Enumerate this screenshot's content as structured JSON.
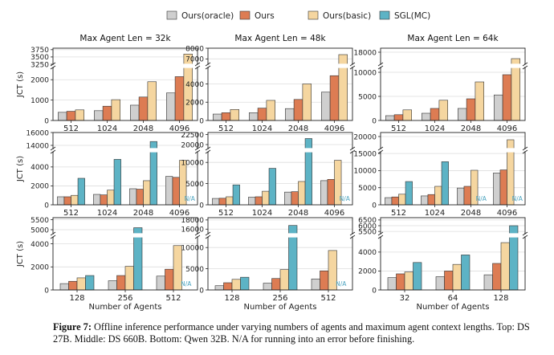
{
  "legend": [
    {
      "name": "Ours(oracle)",
      "color": "#cfcfcf"
    },
    {
      "name": "Ours",
      "color": "#dd7c53"
    },
    {
      "name": "Ours(basic)",
      "color": "#f5d6a0"
    },
    {
      "name": "SGL(MC)",
      "color": "#5db3c5"
    }
  ],
  "caption": {
    "label": "Figure 7:",
    "text": " Offline inference performance under varying numbers of agents and maximum agent context lengths. Top: DS 27B. Middle: DS 660B. Bottom: Qwen 32B. N/A for running into an error before finishing."
  },
  "chart_data": [
    {
      "type": "bar",
      "title": "Max Agent Len = 32k",
      "ylabel": "JCT (s)",
      "xlabel": "",
      "categories": [
        "512",
        "1024",
        "2048",
        "4096"
      ],
      "lower": {
        "range": [
          0,
          2600
        ],
        "ticks": [
          0,
          1000,
          2000
        ]
      },
      "upper": {
        "range": [
          3250,
          3800
        ],
        "ticks": [
          3250,
          3500,
          3750
        ]
      },
      "series": [
        {
          "name": "Ours(oracle)",
          "values": [
            400,
            480,
            750,
            1350
          ]
        },
        {
          "name": "Ours",
          "values": [
            450,
            700,
            1150,
            2150
          ]
        },
        {
          "name": "Ours(basic)",
          "values": [
            520,
            1020,
            1900,
            3600
          ]
        }
      ],
      "na": []
    },
    {
      "type": "bar",
      "title": "Max Agent Len = 48k",
      "ylabel": "",
      "xlabel": "",
      "categories": [
        "512",
        "1024",
        "2048",
        "4096"
      ],
      "lower": {
        "range": [
          0,
          5800
        ],
        "ticks": [
          0,
          2000,
          4000
        ]
      },
      "upper": {
        "range": [
          6500,
          8000
        ],
        "ticks": [
          7000,
          8000
        ]
      },
      "series": [
        {
          "name": "Ours(oracle)",
          "values": [
            700,
            850,
            1300,
            3100
          ]
        },
        {
          "name": "Ours",
          "values": [
            850,
            1350,
            2300,
            4900
          ]
        },
        {
          "name": "Ours(basic)",
          "values": [
            1200,
            2200,
            4000,
            7400
          ]
        }
      ],
      "na": []
    },
    {
      "type": "bar",
      "title": "Max Agent Len = 64k",
      "ylabel": "",
      "xlabel": "",
      "categories": [
        "512",
        "1024",
        "2048",
        "4096"
      ],
      "lower": {
        "range": [
          0,
          11000
        ],
        "ticks": [
          0,
          5000,
          10000
        ]
      },
      "upper": {
        "range": [
          16500,
          18500
        ],
        "ticks": [
          18000
        ]
      },
      "series": [
        {
          "name": "Ours(oracle)",
          "values": [
            1000,
            1500,
            2500,
            5300
          ]
        },
        {
          "name": "Ours",
          "values": [
            1200,
            2500,
            4500,
            9500
          ]
        },
        {
          "name": "Ours(basic)",
          "values": [
            2200,
            4200,
            8000,
            17200
          ]
        }
      ],
      "na": []
    },
    {
      "type": "bar",
      "title": "",
      "ylabel": "JCT (s)",
      "xlabel": "",
      "categories": [
        "512",
        "1024",
        "2048",
        "4096"
      ],
      "lower": {
        "range": [
          0,
          5600
        ],
        "ticks": [
          0,
          2000,
          4000
        ]
      },
      "upper": {
        "range": [
          13500,
          16000
        ],
        "ticks": [
          14000,
          16000
        ]
      },
      "series": [
        {
          "name": "Ours(oracle)",
          "values": [
            850,
            1100,
            1700,
            3000
          ]
        },
        {
          "name": "Ours",
          "values": [
            850,
            1050,
            1650,
            2900
          ]
        },
        {
          "name": "Ours(basic)",
          "values": [
            1000,
            1550,
            2550,
            4700
          ]
        },
        {
          "name": "SGL(MC)",
          "values": [
            2800,
            4800,
            14600,
            null
          ]
        }
      ],
      "na": [
        {
          "series": "SGL(MC)",
          "category": "4096",
          "text": "N/A"
        }
      ]
    },
    {
      "type": "bar",
      "title": "",
      "ylabel": "",
      "xlabel": "",
      "categories": [
        "512",
        "1024",
        "2048",
        "4096"
      ],
      "lower": {
        "range": [
          0,
          12500
        ],
        "ticks": [
          0,
          5000,
          10000
        ]
      },
      "upper": {
        "range": [
          19000,
          23000
        ],
        "ticks": [
          20000,
          22500
        ]
      },
      "series": [
        {
          "name": "Ours(oracle)",
          "values": [
            1500,
            1800,
            3000,
            5700
          ]
        },
        {
          "name": "Ours",
          "values": [
            1550,
            1900,
            3100,
            6000
          ]
        },
        {
          "name": "Ours(basic)",
          "values": [
            1900,
            3200,
            5500,
            10500
          ]
        },
        {
          "name": "SGL(MC)",
          "values": [
            4700,
            8600,
            21500,
            null
          ]
        }
      ],
      "na": [
        {
          "series": "SGL(MC)",
          "category": "4096",
          "text": "N/A"
        }
      ]
    },
    {
      "type": "bar",
      "title": "",
      "ylabel": "",
      "xlabel": "",
      "categories": [
        "512",
        "1024",
        "2048",
        "4096"
      ],
      "lower": {
        "range": [
          0,
          15500
        ],
        "ticks": [
          0,
          5000,
          10000,
          15000
        ]
      },
      "upper": {
        "range": [
          17000,
          21000
        ],
        "ticks": [
          20000
        ]
      },
      "series": [
        {
          "name": "Ours(oracle)",
          "values": [
            2100,
            2600,
            4900,
            9300
          ]
        },
        {
          "name": "Ours",
          "values": [
            2300,
            3000,
            5400,
            10200
          ]
        },
        {
          "name": "Ours(basic)",
          "values": [
            3100,
            5400,
            10100,
            19200
          ]
        },
        {
          "name": "SGL(MC)",
          "values": [
            6800,
            12600,
            null,
            null
          ]
        }
      ],
      "na": [
        {
          "series": "SGL(MC)",
          "category": "2048",
          "text": "N/A"
        },
        {
          "series": "SGL(MC)",
          "category": "4096",
          "text": "N/A"
        }
      ]
    },
    {
      "type": "bar",
      "title": "",
      "ylabel": "JCT (s)",
      "xlabel": "Number of Agents",
      "categories": [
        "128",
        "256",
        "512"
      ],
      "lower": {
        "range": [
          0,
          4600
        ],
        "ticks": [
          0,
          2000,
          4000
        ]
      },
      "upper": {
        "range": [
          4800,
          5600
        ],
        "ticks": [
          5000,
          5500
        ]
      },
      "series": [
        {
          "name": "Ours(oracle)",
          "values": [
            550,
            800,
            1200
          ]
        },
        {
          "name": "Ours",
          "values": [
            750,
            1250,
            1800
          ]
        },
        {
          "name": "Ours(basic)",
          "values": [
            1050,
            2050,
            3850
          ]
        },
        {
          "name": "SGL(MC)",
          "values": [
            1250,
            5100,
            null
          ]
        }
      ],
      "na": [
        {
          "series": "SGL(MC)",
          "category": "512",
          "text": "N/A"
        }
      ]
    },
    {
      "type": "bar",
      "title": "",
      "ylabel": "",
      "xlabel": "Number of Agents",
      "categories": [
        "128",
        "256",
        "512"
      ],
      "lower": {
        "range": [
          0,
          12500
        ],
        "ticks": [
          0,
          5000,
          10000
        ]
      },
      "upper": {
        "range": [
          15000,
          18500
        ],
        "ticks": [
          16000,
          18000
        ]
      },
      "series": [
        {
          "name": "Ours(oracle)",
          "values": [
            1000,
            1600,
            2600
          ]
        },
        {
          "name": "Ours",
          "values": [
            1700,
            2700,
            4500
          ]
        },
        {
          "name": "Ours(basic)",
          "values": [
            2500,
            4800,
            9300
          ]
        },
        {
          "name": "SGL(MC)",
          "values": [
            3000,
            16800,
            null
          ]
        }
      ],
      "na": [
        {
          "series": "SGL(MC)",
          "category": "512",
          "text": "N/A"
        }
      ]
    },
    {
      "type": "bar",
      "title": "",
      "ylabel": "",
      "xlabel": "Number of Agents",
      "categories": [
        "32",
        "64",
        "128"
      ],
      "lower": {
        "range": [
          0,
          5600
        ],
        "ticks": [
          0,
          2000,
          4000
        ]
      },
      "upper": {
        "range": [
          5300,
          6700
        ],
        "ticks": [
          5500,
          6000,
          6500
        ]
      },
      "series": [
        {
          "name": "Ours(oracle)",
          "values": [
            1300,
            1400,
            1600
          ]
        },
        {
          "name": "Ours",
          "values": [
            1700,
            2000,
            2800
          ]
        },
        {
          "name": "Ours(basic)",
          "values": [
            1900,
            2700,
            5000
          ]
        },
        {
          "name": "SGL(MC)",
          "values": [
            2900,
            3700,
            6000
          ]
        }
      ],
      "na": []
    }
  ]
}
